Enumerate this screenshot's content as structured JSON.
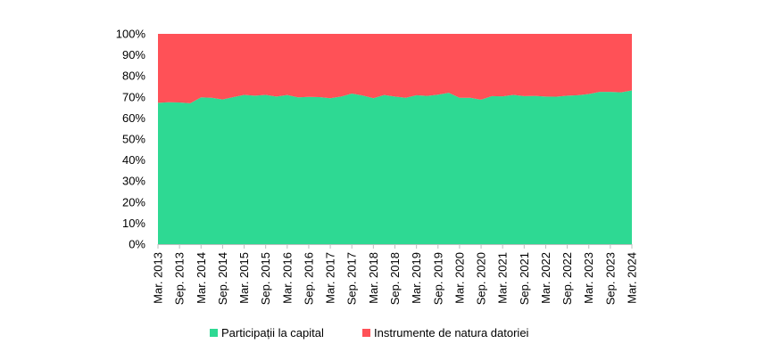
{
  "chart_data": {
    "type": "area",
    "stacked": true,
    "percent": true,
    "ylim": [
      0,
      100
    ],
    "y_ticks": [
      "0%",
      "10%",
      "20%",
      "30%",
      "40%",
      "50%",
      "60%",
      "70%",
      "80%",
      "90%",
      "100%"
    ],
    "x_tick_labels": [
      "Mar. 2013",
      "Sep. 2013",
      "Mar. 2014",
      "Sep. 2014",
      "Mar. 2015",
      "Sep. 2015",
      "Mar. 2016",
      "Sep. 2016",
      "Mar. 2017",
      "Sep. 2017",
      "Mar. 2018",
      "Sep. 2018",
      "Mar. 2019",
      "Sep. 2019",
      "Mar. 2020",
      "Sep. 2020",
      "Mar. 2021",
      "Sep. 2021",
      "Mar. 2022",
      "Sep. 2022",
      "Mar. 2023",
      "Sep. 2023",
      "Mar. 2024"
    ],
    "x": [
      "Mar. 2013",
      "Jun. 2013",
      "Sep. 2013",
      "Dec. 2013",
      "Mar. 2014",
      "Jun. 2014",
      "Sep. 2014",
      "Dec. 2014",
      "Mar. 2015",
      "Jun. 2015",
      "Sep. 2015",
      "Dec. 2015",
      "Mar. 2016",
      "Jun. 2016",
      "Sep. 2016",
      "Dec. 2016",
      "Mar. 2017",
      "Jun. 2017",
      "Sep. 2017",
      "Dec. 2017",
      "Mar. 2018",
      "Jun. 2018",
      "Sep. 2018",
      "Dec. 2018",
      "Mar. 2019",
      "Jun. 2019",
      "Sep. 2019",
      "Dec. 2019",
      "Mar. 2020",
      "Jun. 2020",
      "Sep. 2020",
      "Dec. 2020",
      "Mar. 2021",
      "Jun. 2021",
      "Sep. 2021",
      "Dec. 2021",
      "Mar. 2022",
      "Jun. 2022",
      "Sep. 2022",
      "Dec. 2022",
      "Mar. 2023",
      "Jun. 2023",
      "Sep. 2023",
      "Dec. 2023",
      "Mar. 2024"
    ],
    "series": [
      {
        "name": "Participații la capital",
        "color": "#2ed993",
        "values": [
          67.2,
          67.5,
          67.4,
          67.0,
          69.8,
          69.6,
          68.8,
          69.9,
          71.0,
          70.6,
          71.0,
          70.2,
          70.9,
          69.8,
          70.0,
          69.9,
          69.4,
          70.2,
          71.6,
          70.7,
          69.4,
          70.9,
          70.2,
          69.6,
          70.8,
          70.5,
          71.1,
          72.0,
          69.6,
          69.6,
          68.7,
          70.4,
          70.3,
          71.0,
          70.4,
          70.5,
          70.2,
          70.1,
          70.6,
          70.8,
          71.4,
          72.4,
          72.4,
          72.2,
          73.1
        ]
      },
      {
        "name": "Instrumente de natura datoriei",
        "color": "#ff5157",
        "values": [
          32.8,
          32.5,
          32.6,
          33.0,
          30.2,
          30.4,
          31.2,
          30.1,
          29.0,
          29.4,
          29.0,
          29.8,
          29.1,
          30.2,
          30.0,
          30.1,
          30.6,
          29.8,
          28.4,
          29.3,
          30.6,
          29.1,
          29.8,
          30.4,
          29.2,
          29.5,
          28.9,
          28.0,
          30.4,
          30.4,
          31.3,
          29.6,
          29.7,
          29.0,
          29.6,
          29.5,
          29.8,
          29.9,
          29.4,
          29.2,
          28.6,
          27.6,
          27.6,
          27.8,
          26.9
        ]
      }
    ],
    "grid": false,
    "legend_position": "bottom"
  }
}
